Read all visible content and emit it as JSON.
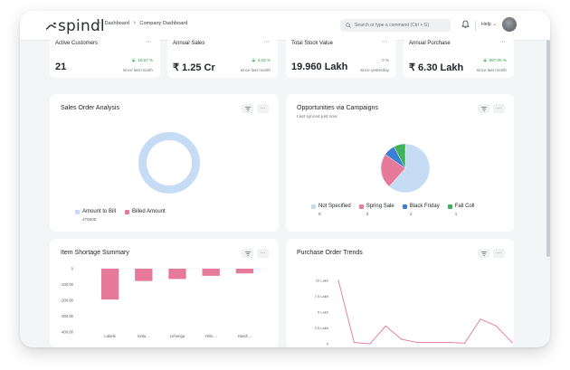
{
  "app": {
    "logo_text": "spindl",
    "breadcrumb": [
      "Dashboard",
      "Company Dashboard"
    ],
    "breadcrumb_sep": ">",
    "search": {
      "placeholder": "Search or type a command (Ctrl + G)"
    },
    "help_label": "Help",
    "help_caret": "⌄"
  },
  "kpis": [
    {
      "title": "Active Customers",
      "value": "21",
      "delta": "16.67 %",
      "since": "since last month",
      "trend": "up"
    },
    {
      "title": "Annual Sales",
      "value": "₹ 1.25 Cr",
      "delta": "4.03 %",
      "since": "since last month",
      "trend": "up"
    },
    {
      "title": "Total Stock Value",
      "value": "19.960 Lakh",
      "delta": "0 %",
      "since": "since yesterday",
      "trend": "neutral"
    },
    {
      "title": "Annual Purchase",
      "value": "₹ 6.30 Lakh",
      "delta": "587.05 %",
      "since": "since last month",
      "trend": "up"
    }
  ],
  "menu_dots": "···",
  "panels": {
    "sales_order": {
      "title": "Sales Order Analysis",
      "chart_data": {
        "type": "pie",
        "style": "donut",
        "labels": [
          "Amount to Bill",
          "Billed Amount"
        ],
        "values": [
          475000,
          0
        ],
        "legend_values": [
          "475000",
          ""
        ],
        "colors": [
          "#c6dcf5",
          "#e7799b"
        ]
      }
    },
    "opportunities": {
      "title": "Opportunities via Campaigns",
      "subtitle": "Last synced just now",
      "chart_data": {
        "type": "pie",
        "labels": [
          "Not Specified",
          "Spring Sale",
          "Black Friday",
          "Fall Coll"
        ],
        "values": [
          8,
          3,
          1,
          1
        ],
        "legend_values": [
          "8",
          "3",
          "1",
          "1"
        ],
        "colors": [
          "#c6dcf5",
          "#e7799b",
          "#3a7fd5",
          "#3fb35a"
        ]
      }
    },
    "item_shortage": {
      "title": "Item Shortage Summary",
      "chart_data": {
        "type": "bar",
        "categories": [
          "Labels",
          "India ...",
          "Lehenga",
          "Yello ...",
          "Handl ..."
        ],
        "values": [
          -195,
          -78,
          -65,
          -45,
          -30
        ],
        "yticks": [
          "0",
          "-100.00",
          "-200.00",
          "-300.00",
          "-400.00"
        ],
        "ylim": [
          -400,
          0
        ],
        "color": "#e7799b"
      }
    },
    "purchase_trends": {
      "title": "Purchase Order Trends",
      "chart_data": {
        "type": "line",
        "values": [
          10,
          0.2,
          0,
          2.8,
          0.7,
          0.2,
          0.2,
          0.2,
          0.1,
          3.9,
          2.8,
          0.2
        ],
        "yticks": [
          "10 Lakh",
          "7.5 Lakh",
          "5 Lakh",
          "2.5 Lakh",
          "0"
        ],
        "ylim": [
          0,
          10
        ],
        "color": "#e7799b"
      }
    }
  }
}
